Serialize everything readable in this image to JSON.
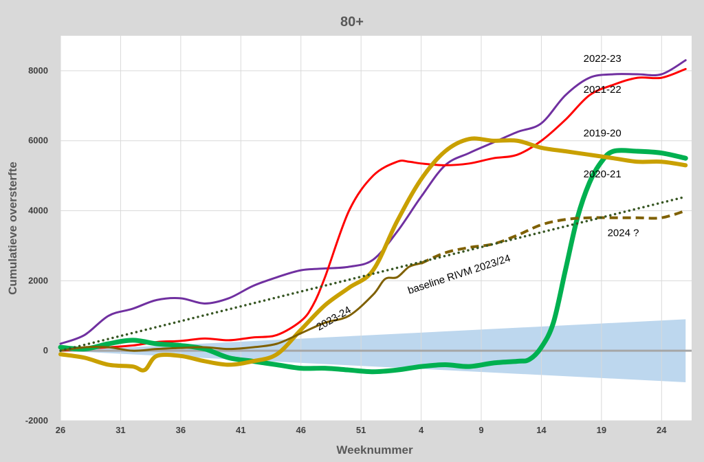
{
  "chart_data": {
    "type": "line",
    "title": "80+",
    "xlabel": "Weeknummer",
    "ylabel": "Cumulatieve oversterfte",
    "ylim": [
      -2000,
      9000
    ],
    "xlim": [
      0,
      52.5
    ],
    "y_ticks": [
      "-2000",
      "0",
      "2000",
      "4000",
      "6000",
      "8000"
    ],
    "x_ticks": [
      "26",
      "31",
      "36",
      "41",
      "46",
      "51",
      "4",
      "9",
      "14",
      "19",
      "24"
    ],
    "x_note": "x = weeks since week 26; week numbers wrap after week 52",
    "grid": true,
    "legend": "none (series labeled directly on chart)",
    "band": {
      "color": "#bdd7ee",
      "upper": [
        [
          0,
          0
        ],
        [
          52,
          900
        ]
      ],
      "lower": [
        [
          0,
          0
        ],
        [
          52,
          -900
        ]
      ]
    },
    "zero_line_color": "#a6a6a6",
    "series": [
      {
        "name": "2022-23",
        "color": "#7030a0",
        "width": 3,
        "style": "solid",
        "x": [
          0,
          2,
          4,
          6,
          8,
          10,
          12,
          14,
          16,
          18,
          20,
          22,
          24,
          26,
          28,
          30,
          32,
          34,
          36,
          38,
          40,
          42,
          44,
          46,
          48,
          50,
          52
        ],
        "y": [
          200,
          450,
          1000,
          1200,
          1450,
          1500,
          1350,
          1500,
          1850,
          2100,
          2300,
          2350,
          2400,
          2600,
          3400,
          4400,
          5300,
          5650,
          5950,
          6250,
          6500,
          7300,
          7800,
          7900,
          7900,
          7900,
          8300
        ]
      },
      {
        "name": "2021-22",
        "color": "#ff0000",
        "width": 3,
        "style": "solid",
        "x": [
          0,
          2,
          4,
          6,
          8,
          10,
          12,
          14,
          16,
          18,
          20,
          21,
          22,
          24,
          26,
          28,
          29,
          30,
          32,
          34,
          36,
          38,
          40,
          42,
          44,
          46,
          48,
          50,
          52
        ],
        "y": [
          0,
          50,
          100,
          150,
          250,
          280,
          350,
          300,
          380,
          450,
          850,
          1300,
          2100,
          4000,
          5000,
          5400,
          5400,
          5350,
          5300,
          5350,
          5500,
          5600,
          6000,
          6600,
          7300,
          7600,
          7800,
          7800,
          8050
        ]
      },
      {
        "name": "2019-20",
        "color": "#00b050",
        "width": 7,
        "style": "solid",
        "x": [
          0,
          2,
          4,
          6,
          8,
          10,
          12,
          14,
          16,
          18,
          20,
          22,
          24,
          26,
          28,
          30,
          32,
          34,
          36,
          38,
          39,
          40,
          41,
          42,
          43,
          44,
          45,
          46,
          48,
          50,
          52
        ],
        "y": [
          100,
          50,
          200,
          300,
          200,
          150,
          50,
          -200,
          -300,
          -400,
          -500,
          -500,
          -550,
          -600,
          -550,
          -450,
          -400,
          -450,
          -350,
          -300,
          -250,
          100,
          800,
          2300,
          3800,
          4800,
          5400,
          5700,
          5700,
          5650,
          5500
        ]
      },
      {
        "name": "2020-21",
        "color": "#c9a000",
        "width": 6,
        "style": "solid",
        "x": [
          0,
          2,
          4,
          6,
          7,
          8,
          10,
          12,
          14,
          16,
          18,
          20,
          22,
          24,
          26,
          28,
          30,
          32,
          34,
          36,
          38,
          40,
          42,
          44,
          46,
          48,
          50,
          52
        ],
        "y": [
          -100,
          -200,
          -400,
          -450,
          -550,
          -150,
          -150,
          -300,
          -400,
          -300,
          -100,
          600,
          1300,
          1800,
          2300,
          3700,
          4900,
          5700,
          6050,
          6000,
          6000,
          5800,
          5700,
          5600,
          5500,
          5400,
          5400,
          5300
        ]
      },
      {
        "name": "2023-24",
        "color": "#7f6000",
        "width": 3,
        "style": "solid",
        "x": [
          0,
          2,
          4,
          6,
          8,
          10,
          12,
          14,
          16,
          18,
          20,
          22,
          24,
          26,
          27,
          28,
          29,
          30
        ],
        "y": [
          0,
          100,
          100,
          0,
          50,
          80,
          100,
          50,
          100,
          200,
          500,
          800,
          1000,
          1600,
          2050,
          2100,
          2400,
          2500
        ]
      },
      {
        "name": "2024 ?",
        "color": "#7f6000",
        "width": 4,
        "style": "dashed",
        "x": [
          30,
          32,
          34,
          36,
          38,
          40,
          42,
          44,
          46,
          48,
          50,
          52
        ],
        "y": [
          2500,
          2800,
          2950,
          3050,
          3300,
          3600,
          3750,
          3800,
          3800,
          3800,
          3800,
          4000
        ]
      },
      {
        "name": "baseline RIVM 2023/24",
        "color": "#375623",
        "width": 3.5,
        "style": "dotted",
        "x": [
          0,
          52
        ],
        "y": [
          0,
          4400
        ]
      }
    ],
    "annotations": [
      {
        "text": "2022-23",
        "x": 43.5,
        "y": 8250,
        "rotate": 0
      },
      {
        "text": "2021-22",
        "x": 43.5,
        "y": 7370,
        "rotate": 0
      },
      {
        "text": "2019-20",
        "x": 43.5,
        "y": 6120,
        "rotate": 0
      },
      {
        "text": "2020-21",
        "x": 43.5,
        "y": 4950,
        "rotate": 0
      },
      {
        "text": "2024 ?",
        "x": 45.5,
        "y": 3270,
        "rotate": 0
      },
      {
        "text": "2023-24",
        "x": 21.5,
        "y": 570,
        "rotate": -30
      },
      {
        "text": "baseline RIVM 2023/24",
        "x": 29,
        "y": 1620,
        "rotate": -18
      }
    ]
  }
}
